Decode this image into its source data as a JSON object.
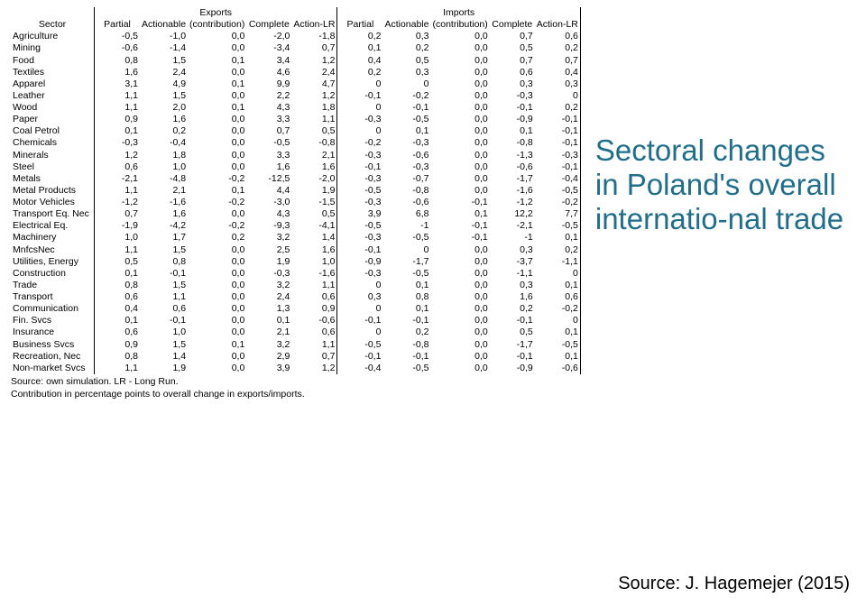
{
  "slide": {
    "title": "Sectoral changes in Poland's overall internatio-nal trade",
    "title_color": "#1f6e8c",
    "source": "Source: J. Hagemejer (2015)"
  },
  "table": {
    "groups": [
      "Exports",
      "Imports"
    ],
    "columns": [
      "Sector",
      "Partial",
      "Actionable",
      "(contribution)",
      "Complete",
      "Action-LR",
      "Partial",
      "Actionable",
      "(contribution)",
      "Complete",
      "Action-LR"
    ],
    "footnotes": [
      "Source: own simulation. LR - Long Run.",
      "Contribution in percentage points to overall change in exports/imports."
    ],
    "border_color": "#000000",
    "font_size_pt": 8,
    "rows": [
      [
        "Agriculture",
        "-0,5",
        "-1,0",
        "0,0",
        "-2,0",
        "-1,8",
        "0,2",
        "0,3",
        "0,0",
        "0,7",
        "0,6"
      ],
      [
        "Mining",
        "-0,6",
        "-1,4",
        "0,0",
        "-3,4",
        "0,7",
        "0,1",
        "0,2",
        "0,0",
        "0,5",
        "0,2"
      ],
      [
        "Food",
        "0,8",
        "1,5",
        "0,1",
        "3,4",
        "1,2",
        "0,4",
        "0,5",
        "0,0",
        "0,7",
        "0,7"
      ],
      [
        "Textiles",
        "1,6",
        "2,4",
        "0,0",
        "4,6",
        "2,4",
        "0,2",
        "0,3",
        "0,0",
        "0,6",
        "0,4"
      ],
      [
        "Apparel",
        "3,1",
        "4,9",
        "0,1",
        "9,9",
        "4,7",
        "0",
        "0",
        "0,0",
        "0,3",
        "0,3"
      ],
      [
        "Leather",
        "1,1",
        "1,5",
        "0,0",
        "2,2",
        "1,2",
        "-0,1",
        "-0,2",
        "0,0",
        "-0,3",
        "0"
      ],
      [
        "Wood",
        "1,1",
        "2,0",
        "0,1",
        "4,3",
        "1,8",
        "0",
        "-0,1",
        "0,0",
        "-0,1",
        "0,2"
      ],
      [
        "Paper",
        "0,9",
        "1,6",
        "0,0",
        "3,3",
        "1,1",
        "-0,3",
        "-0,5",
        "0,0",
        "-0,9",
        "-0,1"
      ],
      [
        "Coal Petrol",
        "0,1",
        "0,2",
        "0,0",
        "0,7",
        "0,5",
        "0",
        "0,1",
        "0,0",
        "0,1",
        "-0,1"
      ],
      [
        "Chemicals",
        "-0,3",
        "-0,4",
        "0,0",
        "-0,5",
        "-0,8",
        "-0,2",
        "-0,3",
        "0,0",
        "-0,8",
        "-0,1"
      ],
      [
        "Minerals",
        "1,2",
        "1,8",
        "0,0",
        "3,3",
        "2,1",
        "-0,3",
        "-0,6",
        "0,0",
        "-1,3",
        "-0,3"
      ],
      [
        "Steel",
        "0,6",
        "1,0",
        "0,0",
        "1,6",
        "1,6",
        "-0,1",
        "-0,3",
        "0,0",
        "-0,6",
        "-0,1"
      ],
      [
        "Metals",
        "-2,1",
        "-4,8",
        "-0,2",
        "-12,5",
        "-2,0",
        "-0,3",
        "-0,7",
        "0,0",
        "-1,7",
        "-0,4"
      ],
      [
        "Metal Products",
        "1,1",
        "2,1",
        "0,1",
        "4,4",
        "1,9",
        "-0,5",
        "-0,8",
        "0,0",
        "-1,6",
        "-0,5"
      ],
      [
        "Motor Vehicles",
        "-1,2",
        "-1,6",
        "-0,2",
        "-3,0",
        "-1,5",
        "-0,3",
        "-0,6",
        "-0,1",
        "-1,2",
        "-0,2"
      ],
      [
        "Transport Eq. Nec",
        "0,7",
        "1,6",
        "0,0",
        "4,3",
        "0,5",
        "3,9",
        "6,8",
        "0,1",
        "12,2",
        "7,7"
      ],
      [
        "Electrical Eq.",
        "-1,9",
        "-4,2",
        "-0,2",
        "-9,3",
        "-4,1",
        "-0,5",
        "-1",
        "-0,1",
        "-2,1",
        "-0,5"
      ],
      [
        "Machinery",
        "1,0",
        "1,7",
        "0,2",
        "3,2",
        "1,4",
        "-0,3",
        "-0,5",
        "-0,1",
        "-1",
        "0,1"
      ],
      [
        "MnfcsNec",
        "1,1",
        "1,5",
        "0,0",
        "2,5",
        "1,6",
        "-0,1",
        "0",
        "0,0",
        "0,3",
        "0,2"
      ],
      [
        "Utilities, Energy",
        "0,5",
        "0,8",
        "0,0",
        "1,9",
        "1,0",
        "-0,9",
        "-1,7",
        "0,0",
        "-3,7",
        "-1,1"
      ],
      [
        "Construction",
        "0,1",
        "-0,1",
        "0,0",
        "-0,3",
        "-1,6",
        "-0,3",
        "-0,5",
        "0,0",
        "-1,1",
        "0"
      ],
      [
        "Trade",
        "0,8",
        "1,5",
        "0,0",
        "3,2",
        "1,1",
        "0",
        "0,1",
        "0,0",
        "0,3",
        "0,1"
      ],
      [
        "Transport",
        "0,6",
        "1,1",
        "0,0",
        "2,4",
        "0,6",
        "0,3",
        "0,8",
        "0,0",
        "1,6",
        "0,6"
      ],
      [
        "Communication",
        "0,4",
        "0,6",
        "0,0",
        "1,3",
        "0,9",
        "0",
        "0,1",
        "0,0",
        "0,2",
        "-0,2"
      ],
      [
        "Fin. Svcs",
        "0,1",
        "-0,1",
        "0,0",
        "0,1",
        "-0,6",
        "-0,1",
        "-0,1",
        "0,0",
        "-0,1",
        "0"
      ],
      [
        "Insurance",
        "0,6",
        "1,0",
        "0,0",
        "2,1",
        "0,6",
        "0",
        "0,2",
        "0,0",
        "0,5",
        "0,1"
      ],
      [
        "Business Svcs",
        "0,9",
        "1,5",
        "0,1",
        "3,2",
        "1,1",
        "-0,5",
        "-0,8",
        "0,0",
        "-1,7",
        "-0,5"
      ],
      [
        "Recreation, Nec",
        "0,8",
        "1,4",
        "0,0",
        "2,9",
        "0,7",
        "-0,1",
        "-0,1",
        "0,0",
        "-0,1",
        "0,1"
      ],
      [
        "Non-market Svcs",
        "1,1",
        "1,9",
        "0,0",
        "3,9",
        "1,2",
        "-0,4",
        "-0,5",
        "0,0",
        "-0,9",
        "-0,6"
      ]
    ]
  }
}
